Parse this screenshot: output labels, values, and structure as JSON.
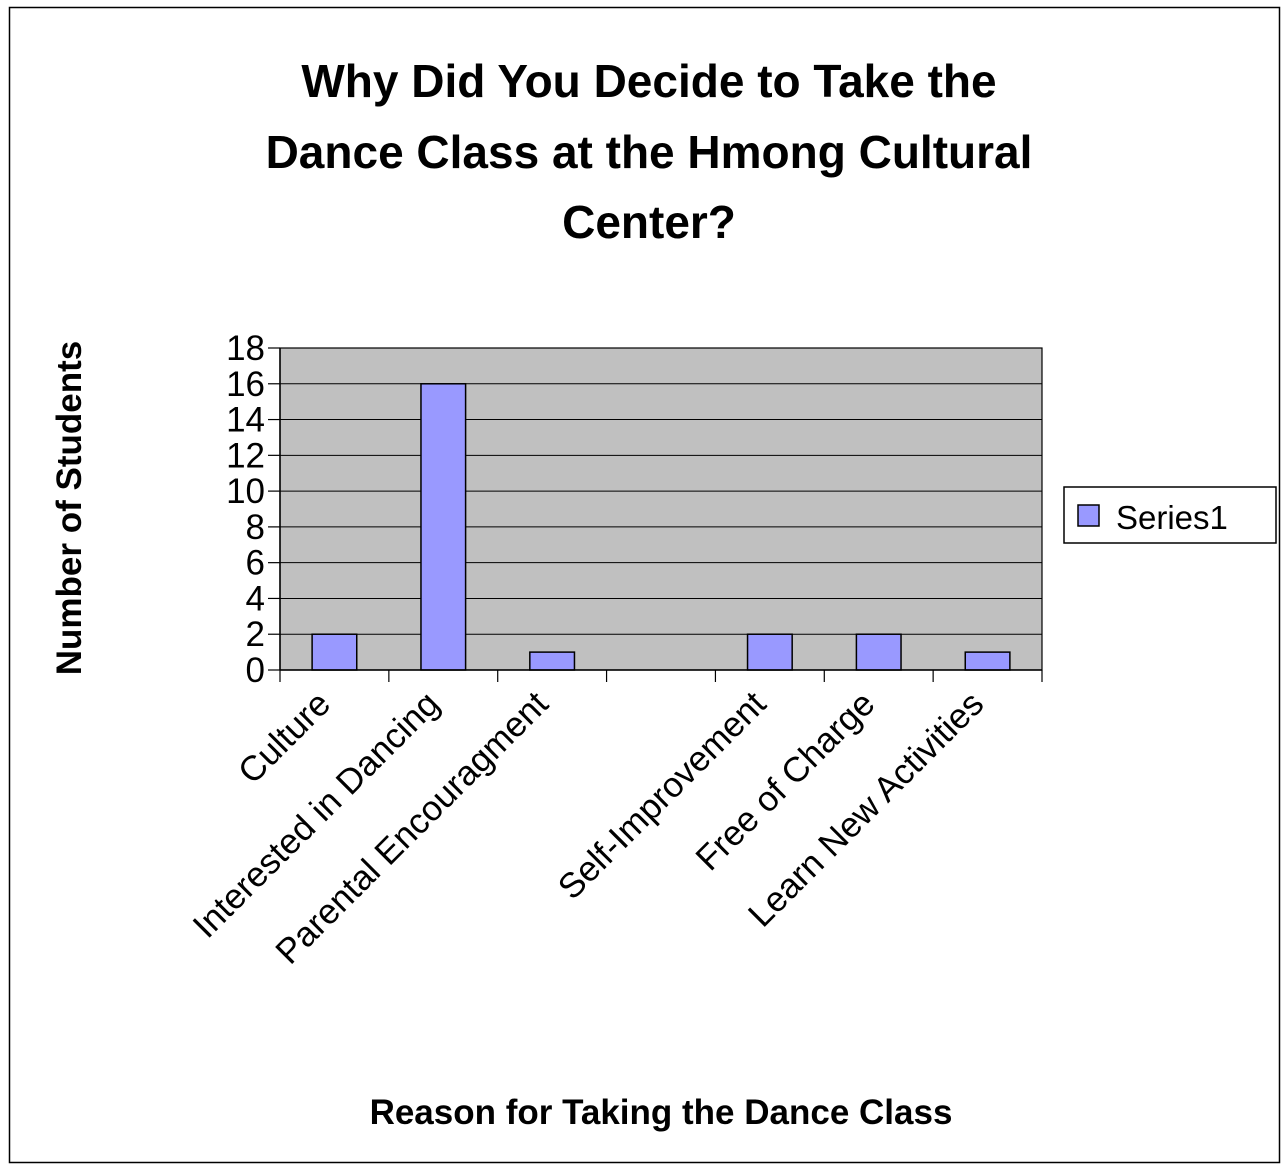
{
  "chart_data": {
    "type": "bar",
    "title": "Why Did You Decide to Take the Dance Class at the Hmong Cultural Center?",
    "title_lines": [
      "Why Did You Decide to Take the",
      "Dance Class at the Hmong Cultural",
      "Center?"
    ],
    "xlabel": "Reason for Taking the Dance Class",
    "ylabel": "Number of Students",
    "categories": [
      "Culture",
      "Interested in Dancing",
      "Parental Encouragment",
      "",
      "Self-Improvement",
      "Free of Charge",
      "Learn New Activities"
    ],
    "series": [
      {
        "name": "Series1",
        "values": [
          2,
          16,
          1,
          0,
          2,
          2,
          1
        ]
      }
    ],
    "ylim": [
      0,
      18
    ],
    "yticks": [
      0,
      2,
      4,
      6,
      8,
      10,
      12,
      14,
      16,
      18
    ],
    "grid": true,
    "legend_position": "right",
    "colors": {
      "bar_fill": "#9999ff",
      "plot_background": "#c0c0c0",
      "gridline": "#000000",
      "frame": "#000000"
    }
  }
}
